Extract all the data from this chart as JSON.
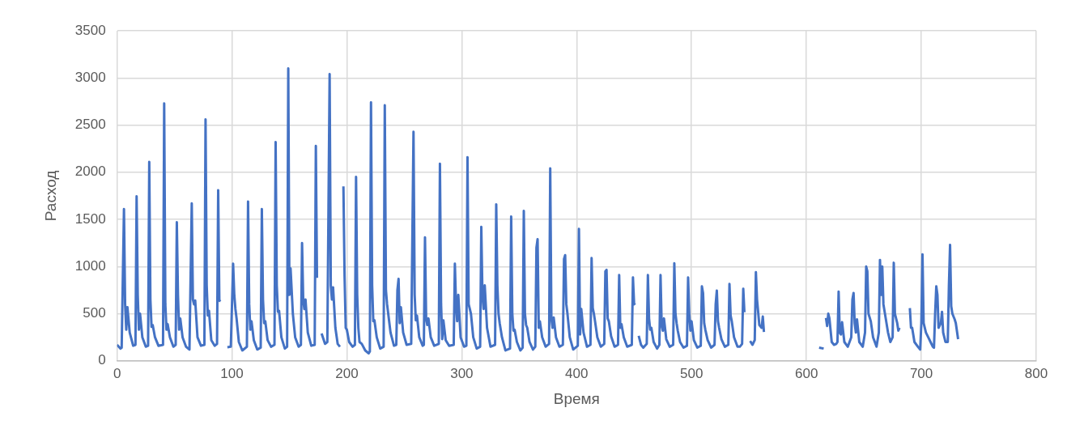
{
  "chart_data": {
    "type": "line",
    "xlabel": "Время",
    "ylabel": "Расход",
    "color": "#4472c4",
    "grid": true,
    "xlim": [
      0,
      800
    ],
    "xticks": [
      0,
      100,
      200,
      300,
      400,
      500,
      600,
      700,
      800
    ],
    "ylim": [
      0,
      3500
    ],
    "yticks": [
      0,
      500,
      1000,
      1500,
      2000,
      2500,
      3000,
      3500
    ],
    "x": [
      0,
      3,
      4,
      6,
      7,
      8,
      9,
      11,
      14,
      16,
      17,
      18,
      19,
      20,
      22,
      25,
      27,
      28,
      29,
      30,
      31,
      33,
      36,
      40,
      41,
      42,
      43,
      44,
      46,
      49,
      51,
      52,
      53,
      54,
      55,
      57,
      60,
      63,
      65,
      66,
      67,
      68,
      70,
      73,
      76,
      77,
      78,
      79,
      80,
      82,
      85,
      87,
      88,
      89,
      90,
      92,
      96,
      99,
      101,
      102,
      103,
      104,
      106,
      109,
      113,
      114,
      115,
      116,
      117,
      119,
      122,
      125,
      126,
      127,
      128,
      129,
      131,
      134,
      137,
      138,
      139,
      140,
      141,
      143,
      146,
      148,
      149,
      150,
      151,
      153,
      155,
      158,
      160,
      161,
      162,
      163,
      164,
      166,
      169,
      172,
      173,
      174,
      176,
      178,
      181,
      183,
      185,
      186,
      187,
      188,
      190,
      192,
      194,
      196,
      197,
      198,
      199,
      200,
      202,
      205,
      207,
      208,
      209,
      210,
      211,
      213,
      216,
      219,
      220,
      221,
      222,
      223,
      224,
      226,
      229,
      232,
      233,
      234,
      235,
      236,
      238,
      241,
      243,
      244,
      245,
      246,
      247,
      249,
      252,
      256,
      258,
      259,
      260,
      261,
      263,
      266,
      267,
      268,
      269,
      270,
      271,
      273,
      276,
      280,
      281,
      282,
      283,
      284,
      286,
      289,
      293,
      294,
      295,
      296,
      297,
      299,
      302,
      304,
      305,
      306,
      307,
      308,
      310,
      313,
      316,
      317,
      318,
      319,
      320,
      322,
      325,
      329,
      330,
      331,
      332,
      333,
      335,
      338,
      342,
      343,
      344,
      345,
      346,
      348,
      351,
      353,
      354,
      355,
      356,
      357,
      359,
      362,
      364,
      365,
      366,
      367,
      368,
      370,
      373,
      376,
      377,
      378,
      379,
      380,
      382,
      385,
      388,
      389,
      390,
      391,
      392,
      394,
      397,
      401,
      402,
      403,
      404,
      406,
      409,
      412,
      413,
      414,
      415,
      416,
      418,
      421,
      424,
      425,
      426,
      427,
      428,
      430,
      433,
      436,
      437,
      438,
      439,
      441,
      444,
      448,
      449,
      450,
      451,
      452,
      454,
      456,
      458,
      461,
      462,
      463,
      464,
      465,
      467,
      470,
      472,
      473,
      474,
      475,
      476,
      478,
      481,
      484,
      485,
      486,
      487,
      488,
      490,
      493,
      496,
      497,
      498,
      499,
      500,
      502,
      505,
      508,
      509,
      510,
      511,
      512,
      514,
      517,
      520,
      521,
      522,
      523,
      524,
      526,
      529,
      532,
      533,
      534,
      535,
      537,
      540,
      542,
      544,
      545,
      546,
      548,
      551,
      553,
      555,
      556,
      557,
      559,
      561,
      562,
      563,
      580,
      611,
      615,
      616,
      617,
      618,
      619,
      620,
      622,
      624,
      626,
      627,
      628,
      629,
      630,
      631,
      633,
      636,
      639,
      640,
      641,
      642,
      643,
      644,
      646,
      649,
      651,
      652,
      653,
      654,
      656,
      658,
      661,
      663,
      664,
      665,
      666,
      667,
      669,
      671,
      673,
      675,
      676,
      677,
      679,
      680,
      681,
      685,
      690,
      691,
      692,
      694,
      697,
      699,
      700,
      701,
      702,
      704,
      706,
      708,
      710,
      711,
      712,
      713,
      714,
      715,
      717,
      718,
      719,
      721,
      723,
      724,
      725,
      726,
      727,
      729,
      730,
      732
    ],
    "values": [
      170,
      130,
      140,
      1610,
      600,
      330,
      570,
      300,
      160,
      170,
      1745,
      700,
      330,
      500,
      250,
      150,
      160,
      2110,
      650,
      360,
      380,
      250,
      160,
      170,
      2730,
      600,
      330,
      390,
      250,
      150,
      170,
      1470,
      700,
      330,
      450,
      250,
      150,
      120,
      1670,
      650,
      600,
      640,
      250,
      160,
      170,
      2560,
      800,
      480,
      530,
      220,
      160,
      180,
      1810,
      640,
      630,
      null,
      145,
      150,
      1030,
      700,
      550,
      450,
      200,
      110,
      150,
      1690,
      600,
      330,
      420,
      220,
      120,
      140,
      1610,
      650,
      400,
      420,
      220,
      150,
      170,
      2320,
      800,
      520,
      530,
      250,
      130,
      150,
      3100,
      700,
      980,
      500,
      250,
      150,
      170,
      1250,
      650,
      550,
      650,
      300,
      160,
      170,
      2280,
      880,
      null,
      290,
      180,
      200,
      3040,
      800,
      650,
      780,
      350,
      180,
      150,
      null,
      1850,
      900,
      350,
      330,
      200,
      150,
      170,
      1950,
      700,
      350,
      200,
      180,
      110,
      80,
      100,
      2740,
      800,
      420,
      430,
      250,
      130,
      150,
      2710,
      750,
      600,
      500,
      300,
      160,
      170,
      750,
      870,
      400,
      570,
      300,
      170,
      180,
      2430,
      700,
      430,
      480,
      250,
      160,
      170,
      1310,
      450,
      380,
      450,
      250,
      160,
      180,
      2090,
      600,
      230,
      430,
      220,
      160,
      170,
      1030,
      600,
      420,
      700,
      250,
      150,
      160,
      2160,
      600,
      550,
      500,
      250,
      130,
      150,
      1420,
      700,
      550,
      800,
      350,
      150,
      170,
      1660,
      800,
      500,
      400,
      250,
      110,
      130,
      1530,
      500,
      320,
      330,
      200,
      110,
      140,
      1590,
      500,
      380,
      350,
      200,
      120,
      150,
      1200,
      1290,
      350,
      420,
      250,
      150,
      180,
      2040,
      450,
      350,
      460,
      250,
      150,
      170,
      1080,
      1120,
      600,
      500,
      250,
      120,
      160,
      1400,
      280,
      550,
      300,
      150,
      170,
      1090,
      560,
      500,
      420,
      250,
      150,
      180,
      950,
      965,
      450,
      420,
      260,
      150,
      170,
      910,
      350,
      390,
      250,
      150,
      170,
      885,
      600,
      615,
      null,
      265,
      170,
      140,
      180,
      910,
      450,
      330,
      350,
      200,
      130,
      170,
      910,
      380,
      320,
      450,
      230,
      150,
      170,
      1035,
      500,
      400,
      320,
      200,
      140,
      160,
      885,
      500,
      320,
      420,
      220,
      140,
      160,
      790,
      720,
      400,
      330,
      220,
      140,
      170,
      600,
      745,
      420,
      350,
      230,
      150,
      170,
      815,
      480,
      420,
      250,
      150,
      150,
      180,
      765,
      515,
      null,
      210,
      170,
      220,
      940,
      650,
      380,
      350,
      470,
      307,
      null,
      140,
      130,
      null,
      455,
      370,
      500,
      450,
      200,
      170,
      180,
      200,
      735,
      300,
      280,
      410,
      200,
      150,
      250,
      650,
      720,
      400,
      300,
      440,
      200,
      150,
      300,
      1000,
      950,
      500,
      420,
      250,
      150,
      300,
      1070,
      700,
      1000,
      600,
      450,
      300,
      200,
      250,
      1040,
      500,
      400,
      320,
      350,
      null,
      560,
      350,
      350,
      200,
      150,
      120,
      400,
      1130,
      400,
      300,
      250,
      200,
      150,
      140,
      500,
      790,
      700,
      350,
      400,
      520,
      300,
      200,
      200,
      800,
      1230,
      580,
      500,
      440,
      400,
      230
    ]
  }
}
